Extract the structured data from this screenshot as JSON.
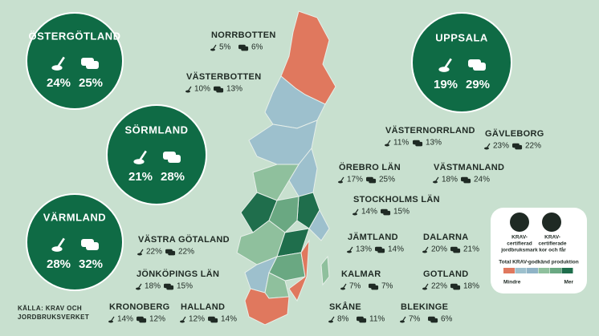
{
  "highlights": [
    {
      "name": "ÖSTERGÖTLAND",
      "land": "24%",
      "cattle": "25%"
    },
    {
      "name": "SÖRMLAND",
      "land": "21%",
      "cattle": "28%"
    },
    {
      "name": "VÄRMLAND",
      "land": "28%",
      "cattle": "32%"
    },
    {
      "name": "UPPSALA",
      "land": "19%",
      "cattle": "29%"
    }
  ],
  "regions": [
    {
      "name": "NORRBOTTEN",
      "land": "5%",
      "cattle": "6%"
    },
    {
      "name": "VÄSTERBOTTEN",
      "land": "10%",
      "cattle": "13%"
    },
    {
      "name": "VÄSTERNORRLAND",
      "land": "11%",
      "cattle": "13%"
    },
    {
      "name": "GÄVLEBORG",
      "land": "23%",
      "cattle": "22%"
    },
    {
      "name": "ÖREBRO LÄN",
      "land": "17%",
      "cattle": "25%"
    },
    {
      "name": "VÄSTMANLAND",
      "land": "18%",
      "cattle": "24%"
    },
    {
      "name": "STOCKHOLMS LÄN",
      "land": "14%",
      "cattle": "15%"
    },
    {
      "name": "VÄSTRA GÖTALAND",
      "land": "22%",
      "cattle": "22%"
    },
    {
      "name": "JÄMTLAND",
      "land": "13%",
      "cattle": "14%"
    },
    {
      "name": "DALARNA",
      "land": "20%",
      "cattle": "21%"
    },
    {
      "name": "JÖNKÖPINGS LÄN",
      "land": "18%",
      "cattle": "15%"
    },
    {
      "name": "KALMAR",
      "land": "7%",
      "cattle": "7%"
    },
    {
      "name": "GOTLAND",
      "land": "22%",
      "cattle": "18%"
    },
    {
      "name": "KRONOBERG",
      "land": "14%",
      "cattle": "12%"
    },
    {
      "name": "HALLAND",
      "land": "12%",
      "cattle": "14%"
    },
    {
      "name": "SKÅNE",
      "land": "8%",
      "cattle": "11%"
    },
    {
      "name": "BLEKINGE",
      "land": "7%",
      "cattle": "6%"
    }
  ],
  "legend": {
    "land": [
      "KRAV-",
      "certifierad",
      "jordbruksmark"
    ],
    "cattle": [
      "KRAV-",
      "certifierade",
      "kor och får"
    ],
    "scale_title": "Total KRAV-godkänd produktion",
    "scale_colors": [
      "#e0785e",
      "#9dc0cd",
      "#8fb3c6",
      "#8fc09d",
      "#6aa882",
      "#1f6e4c"
    ],
    "min": "Mindre",
    "max": "Mer"
  },
  "source": [
    "KÄLLA: KRAV OCH",
    "JORDBRUKSVERKET"
  ]
}
